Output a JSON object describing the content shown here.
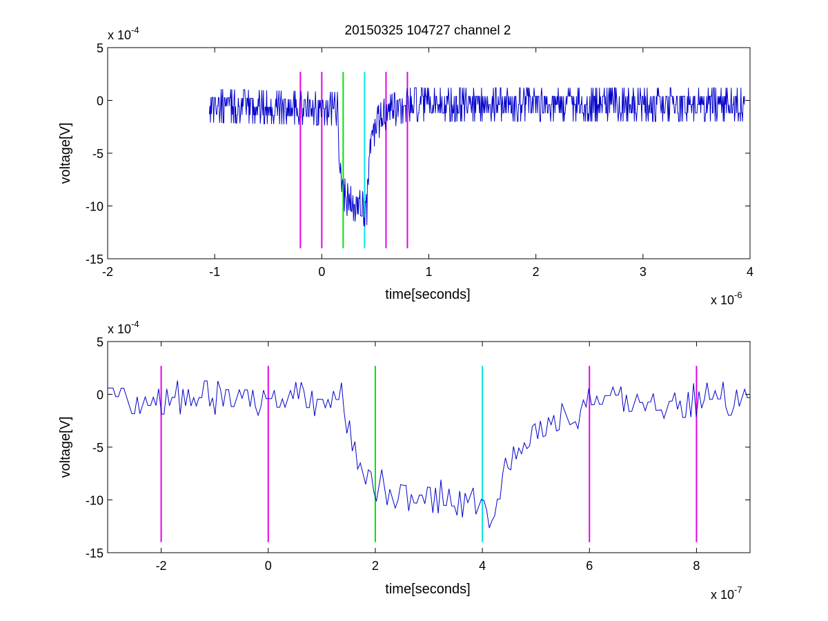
{
  "title": "20150325 104727 channel 2",
  "chart_data": [
    {
      "type": "line",
      "xlabel": "time[seconds]",
      "ylabel": "voltage[V]",
      "x_exponent_label": "x 10",
      "x_exponent": "-6",
      "y_exponent_label": "x 10",
      "y_exponent": "-4",
      "xlim": [
        -2,
        4
      ],
      "ylim": [
        -15,
        5
      ],
      "xticks": [
        -2,
        -1,
        0,
        1,
        2,
        3,
        4
      ],
      "xtick_labels": [
        "-2",
        "-1",
        "0",
        "1",
        "2",
        "3",
        "4"
      ],
      "yticks": [
        5,
        0,
        -5,
        -10,
        -15
      ],
      "ytick_labels": [
        "5",
        "0",
        "-5",
        "-10",
        "-15"
      ],
      "grid": false,
      "signal_color": "#0000cc",
      "signal": {
        "x_start": -1.05,
        "x_end": 3.95,
        "samples": 1000,
        "noise_amplitude": 1.6,
        "baseline": [
          [
            -1.05,
            -0.5
          ],
          [
            0.15,
            -0.8
          ],
          [
            0.16,
            -4
          ],
          [
            0.2,
            -8.7
          ],
          [
            0.25,
            -9.6
          ],
          [
            0.38,
            -10.2
          ],
          [
            0.42,
            -10.5
          ],
          [
            0.45,
            -4.5
          ],
          [
            0.5,
            -2.4
          ],
          [
            0.6,
            -1.2
          ],
          [
            0.8,
            -0.4
          ],
          [
            3.95,
            -0.4
          ]
        ]
      },
      "markers": [
        {
          "x": -0.2,
          "color": "#e600e6"
        },
        {
          "x": 0.0,
          "color": "#e600e6"
        },
        {
          "x": 0.2,
          "color": "#00e600"
        },
        {
          "x": 0.4,
          "color": "#00e6e6"
        },
        {
          "x": 0.6,
          "color": "#e600e6"
        },
        {
          "x": 0.8,
          "color": "#e600e6"
        }
      ],
      "marker_y_range": [
        -14,
        2.7
      ]
    },
    {
      "type": "line",
      "xlabel": "time[seconds]",
      "ylabel": "voltage[V]",
      "x_exponent_label": "x 10",
      "x_exponent": "-7",
      "y_exponent_label": "x 10",
      "y_exponent": "-4",
      "xlim": [
        -3,
        9
      ],
      "ylim": [
        -15,
        5
      ],
      "xticks": [
        -2,
        0,
        2,
        4,
        6,
        8
      ],
      "xtick_labels": [
        "-2",
        "0",
        "2",
        "4",
        "6",
        "8"
      ],
      "yticks": [
        5,
        0,
        -5,
        -10,
        -15
      ],
      "ytick_labels": [
        "5",
        "0",
        "-5",
        "-10",
        "-15"
      ],
      "grid": false,
      "signal_color": "#0000cc",
      "signal": {
        "x_start": -3,
        "x_end": 9,
        "samples": 240,
        "noise_amplitude": 1.5,
        "baseline": [
          [
            -3,
            -0.2
          ],
          [
            1.4,
            -0.5
          ],
          [
            1.55,
            -4
          ],
          [
            1.65,
            -7
          ],
          [
            2.0,
            -8.5
          ],
          [
            2.5,
            -9.4
          ],
          [
            3.5,
            -9.8
          ],
          [
            4.2,
            -11.2
          ],
          [
            4.4,
            -8
          ],
          [
            4.6,
            -5.5
          ],
          [
            5.0,
            -3.5
          ],
          [
            5.6,
            -2.2
          ],
          [
            6.0,
            -1
          ],
          [
            9,
            -0.3
          ]
        ]
      },
      "markers": [
        {
          "x": -2,
          "color": "#e600e6"
        },
        {
          "x": 0,
          "color": "#e600e6"
        },
        {
          "x": 2,
          "color": "#00e600"
        },
        {
          "x": 4,
          "color": "#00e6e6"
        },
        {
          "x": 6,
          "color": "#e600e6"
        },
        {
          "x": 8,
          "color": "#e600e6"
        }
      ],
      "marker_y_range": [
        -14,
        2.7
      ]
    }
  ]
}
